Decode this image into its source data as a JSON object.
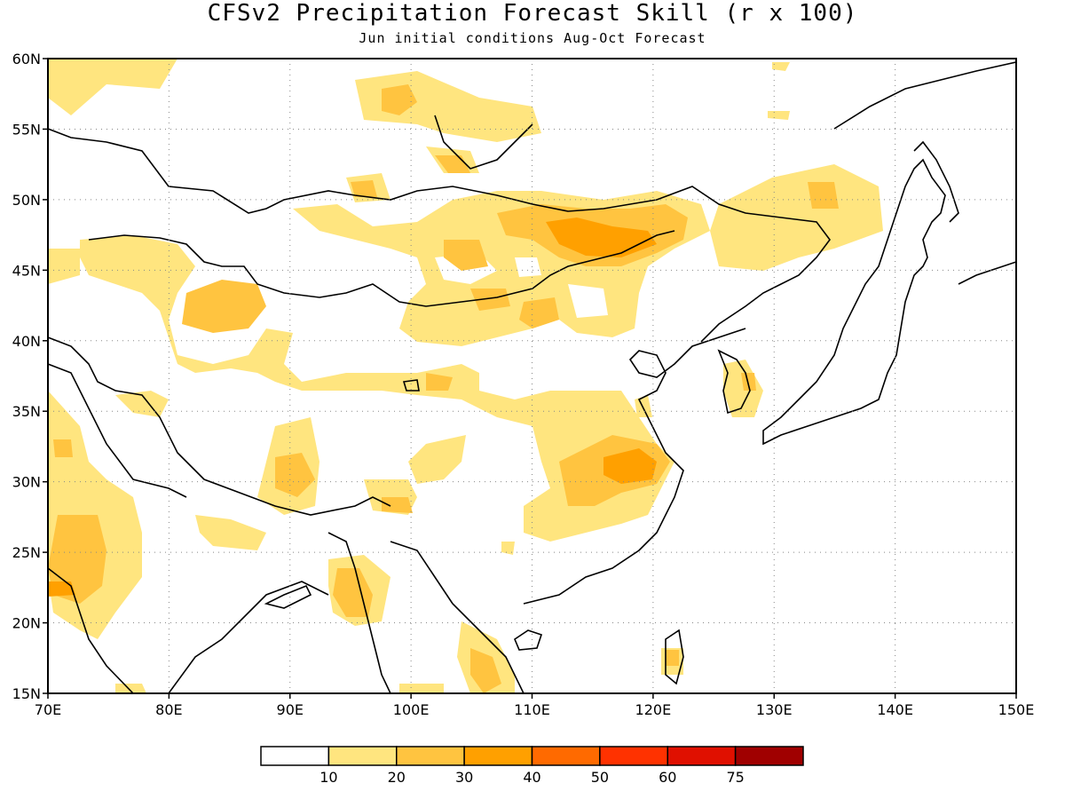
{
  "title": "CFSv2 Precipitation Forecast Skill (r x 100)",
  "subtitle": "Jun initial conditions  Aug-Oct Forecast",
  "map": {
    "lon_range": [
      70,
      150
    ],
    "lat_range": [
      15,
      60
    ],
    "lon_ticks": [
      "70E",
      "80E",
      "90E",
      "100E",
      "110E",
      "120E",
      "130E",
      "140E",
      "150E"
    ],
    "lat_ticks": [
      "15N",
      "20N",
      "25N",
      "30N",
      "35N",
      "40N",
      "45N",
      "50N",
      "55N",
      "60N"
    ],
    "grid": "dotted",
    "coastlines": true,
    "country_borders": true
  },
  "legend": {
    "labels": [
      "10",
      "20",
      "30",
      "40",
      "50",
      "60",
      "75"
    ],
    "colors": [
      "#ffffff",
      "#ffe57f",
      "#ffc440",
      "#ffa000",
      "#ff6a00",
      "#ff3200",
      "#e01000",
      "#a00000"
    ]
  }
}
